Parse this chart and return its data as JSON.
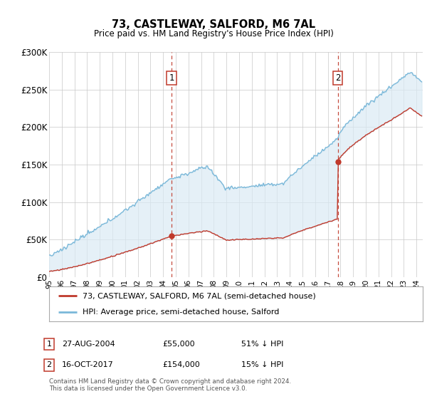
{
  "title": "73, CASTLEWAY, SALFORD, M6 7AL",
  "subtitle": "Price paid vs. HM Land Registry's House Price Index (HPI)",
  "hpi_color": "#7ab8d9",
  "hpi_fill_color": "#daeaf4",
  "price_color": "#c0392b",
  "dashed_line_color": "#c0392b",
  "background_color": "#ffffff",
  "grid_color": "#c8c8c8",
  "ylim": [
    0,
    300000
  ],
  "yticks": [
    0,
    50000,
    100000,
    150000,
    200000,
    250000,
    300000
  ],
  "ytick_labels": [
    "£0",
    "£50K",
    "£100K",
    "£150K",
    "£200K",
    "£250K",
    "£300K"
  ],
  "legend_label1": "73, CASTLEWAY, SALFORD, M6 7AL (semi-detached house)",
  "legend_label2": "HPI: Average price, semi-detached house, Salford",
  "sale1_year": 2004.67,
  "sale1_price": 55000,
  "sale1_label": "1",
  "sale2_year": 2017.79,
  "sale2_price": 154000,
  "sale2_label": "2",
  "table_row1": [
    "1",
    "27-AUG-2004",
    "£55,000",
    "51% ↓ HPI"
  ],
  "table_row2": [
    "2",
    "16-OCT-2017",
    "£154,000",
    "15% ↓ HPI"
  ],
  "footnote": "Contains HM Land Registry data © Crown copyright and database right 2024.\nThis data is licensed under the Open Government Licence v3.0."
}
